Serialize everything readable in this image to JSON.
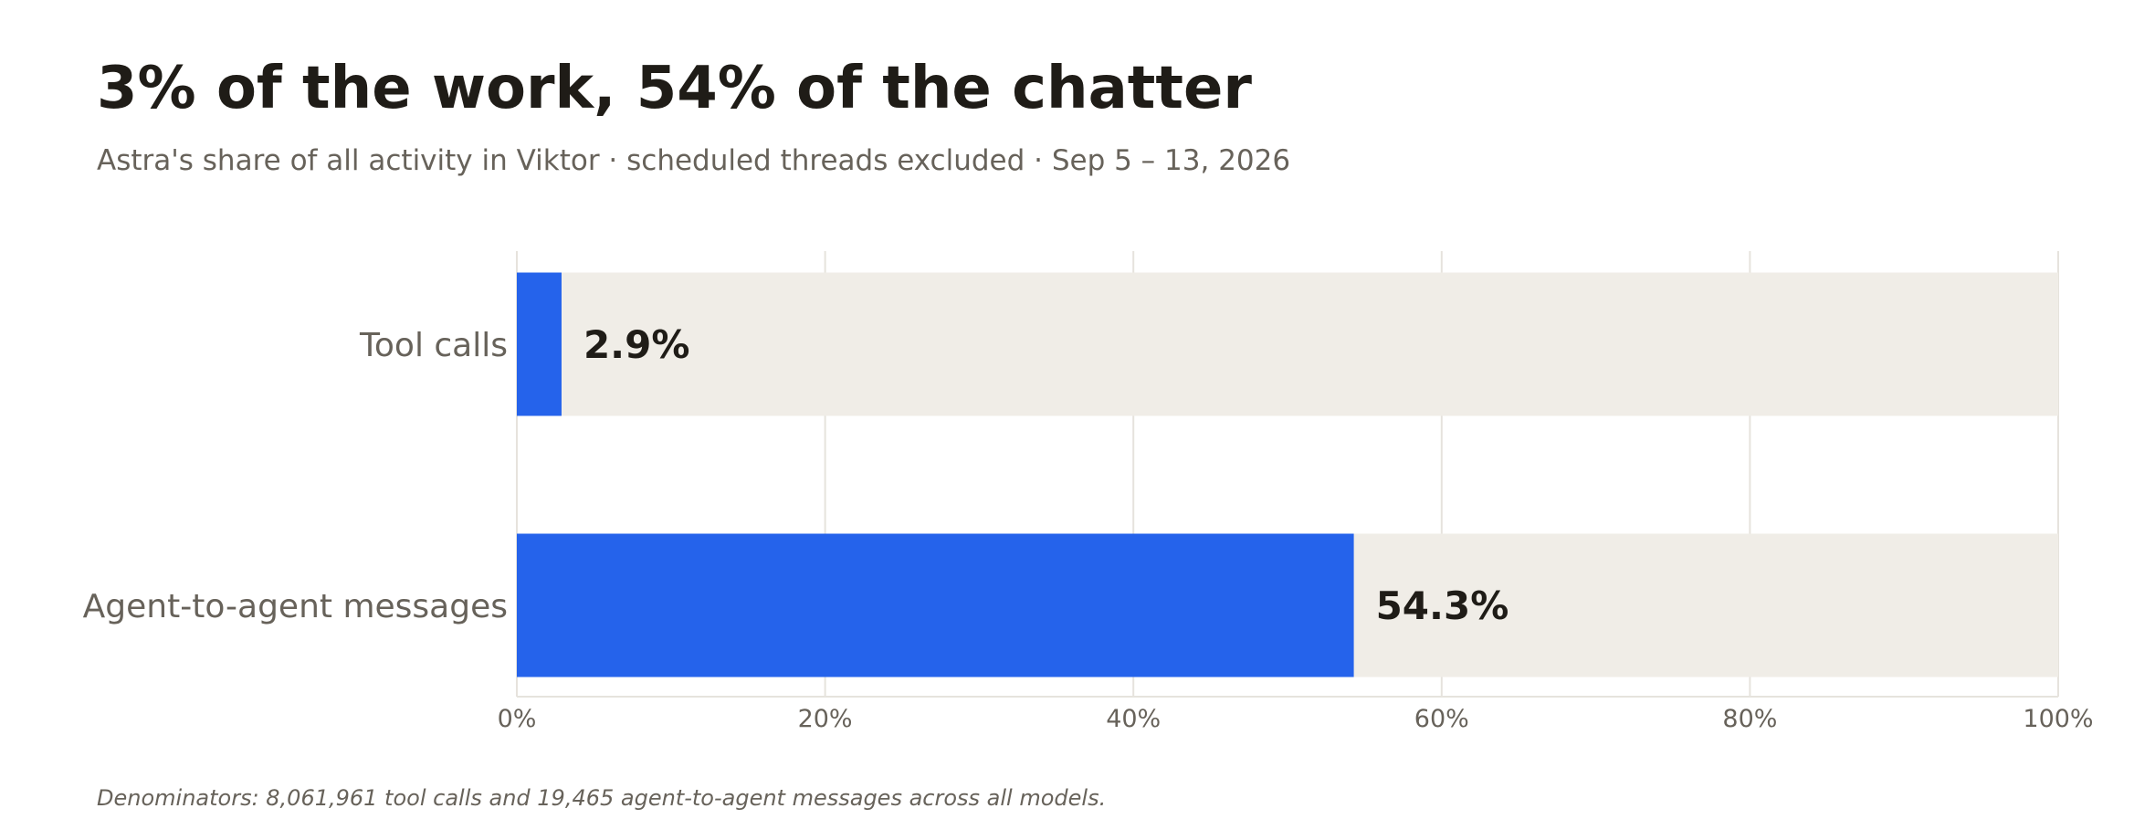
{
  "title": "3% of the work, 54% of the chatter",
  "subtitle": "Astra's share of all activity in Viktor · scheduled threads excluded · Sep 5 – 13, 2026",
  "footnote": "Denominators: 8,061,961 tool calls and 19,465 agent-to-agent messages across all models.",
  "colors": {
    "bar": "#2563eb",
    "track": "#f0ede7",
    "grid": "#e6e3dd",
    "text_dark": "#1f1c17",
    "text_muted": "#67625a"
  },
  "chart_data": {
    "type": "bar",
    "orientation": "horizontal",
    "categories": [
      "Tool calls",
      "Agent-to-agent messages"
    ],
    "values": [
      2.9,
      54.3
    ],
    "value_labels": [
      "2.9%",
      "54.3%"
    ],
    "xlim": [
      0,
      100
    ],
    "xticks": [
      0,
      20,
      40,
      60,
      80,
      100
    ],
    "xtick_labels": [
      "0%",
      "20%",
      "40%",
      "60%",
      "80%",
      "100%"
    ],
    "grid": true,
    "legend": "none"
  }
}
